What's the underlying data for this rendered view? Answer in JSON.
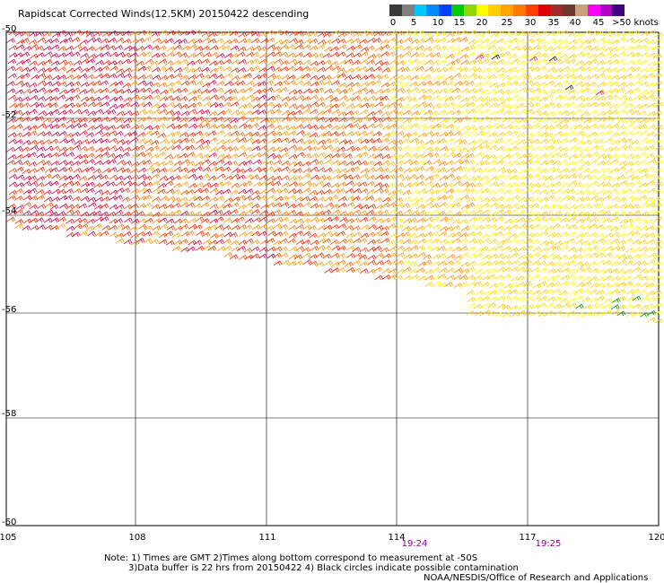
{
  "title": "Rapidscat Corrected Winds(12.5KM) 20150422 descending",
  "colorbar": {
    "colors": [
      "#3a3a3a",
      "#7f7f7f",
      "#00c8ff",
      "#008cff",
      "#0040ff",
      "#00cc00",
      "#90d400",
      "#ffff00",
      "#ffd000",
      "#ffa500",
      "#ff7800",
      "#ff4000",
      "#e00000",
      "#a52a2a",
      "#6b3a2a",
      "#c8a080",
      "#ff00ff",
      "#b000c8",
      "#400080"
    ],
    "labels": [
      "0",
      "5",
      "10",
      "15",
      "20",
      "25",
      "30",
      "35",
      "40",
      "45",
      ">50 knots"
    ]
  },
  "map": {
    "lat_labels": [
      "-50",
      "-52",
      "-54",
      "-56",
      "-58",
      "-60"
    ],
    "lon_labels": [
      "105",
      "108",
      "111",
      "114",
      "117",
      "120"
    ],
    "time_labels": [
      "19:24",
      "19:25"
    ]
  },
  "notes": {
    "line1": "Note: 1) Times are GMT 2)Times along bottom correspond to measurement at -50S",
    "line2": "3)Data buffer is 22 hrs from 20150422 4) Black circles indicate possible contamination",
    "credit": "NOAA/NESDIS/Office of Research and Applications"
  }
}
